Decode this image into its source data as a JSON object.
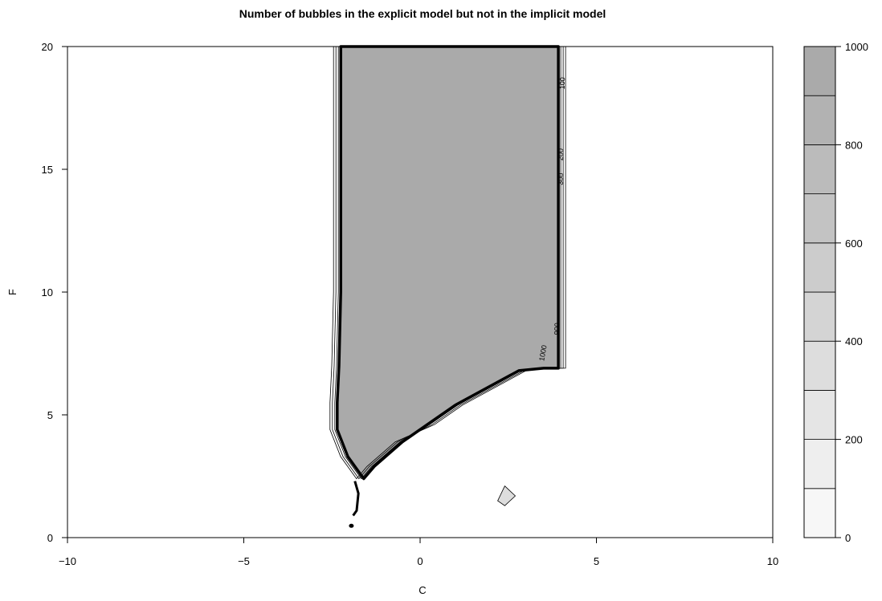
{
  "chart_data": {
    "type": "heatmap",
    "title": "Number of bubbles in the explicit model but not in the implicit model",
    "xlabel": "C",
    "ylabel": "F",
    "xlim": [
      -10,
      10
    ],
    "ylim": [
      0,
      20
    ],
    "x_ticks": [
      "−10",
      "−5",
      "0",
      "5",
      "10"
    ],
    "x_tick_values": [
      -10,
      -5,
      0,
      5,
      10
    ],
    "y_ticks": [
      "0",
      "5",
      "10",
      "15",
      "20"
    ],
    "y_tick_values": [
      0,
      5,
      10,
      15,
      20
    ],
    "fill_value": 1000,
    "region_polygon": [
      [
        -2.25,
        20
      ],
      [
        3.92,
        20
      ],
      [
        3.92,
        6.9
      ],
      [
        3.5,
        6.9
      ],
      [
        2.8,
        6.8
      ],
      [
        1.0,
        5.4
      ],
      [
        0.2,
        4.6
      ],
      [
        -0.5,
        3.9
      ],
      [
        -1.3,
        2.9
      ],
      [
        -1.6,
        2.4
      ],
      [
        -2.05,
        3.3
      ],
      [
        -2.35,
        4.4
      ],
      [
        -2.35,
        5.5
      ],
      [
        -2.3,
        7.0
      ],
      [
        -2.25,
        10.0
      ],
      [
        -2.25,
        20
      ]
    ],
    "islands": [
      {
        "x": [
          2.2,
          2.4,
          2.7,
          2.4,
          2.2
        ],
        "y": [
          1.5,
          2.1,
          1.7,
          1.3,
          1.5
        ]
      }
    ],
    "contour_labels": [
      {
        "text": "100",
        "x": 4.1,
        "y": 18.5,
        "angle": -88
      },
      {
        "text": "200",
        "x": 4.05,
        "y": 15.6,
        "angle": -88
      },
      {
        "text": "300",
        "x": 4.05,
        "y": 14.6,
        "angle": -88
      },
      {
        "text": "900",
        "x": 3.95,
        "y": 8.5,
        "angle": -88
      },
      {
        "text": "1000",
        "x": 3.55,
        "y": 7.5,
        "angle": -80
      }
    ],
    "colorbar": {
      "levels": [
        0,
        100,
        200,
        300,
        400,
        500,
        600,
        700,
        800,
        900,
        1000
      ],
      "colors": [
        "#ffffff",
        "#f7f7f7",
        "#eeeeee",
        "#e5e5e5",
        "#dddddd",
        "#d4d4d4",
        "#cccccc",
        "#c3c3c3",
        "#bbbbbb",
        "#b2b2b2",
        "#aaaaaa"
      ],
      "tick_values": [
        0,
        200,
        400,
        600,
        800,
        1000
      ],
      "tick_labels": [
        "0",
        "200",
        "400",
        "600",
        "800",
        "1000"
      ]
    }
  }
}
